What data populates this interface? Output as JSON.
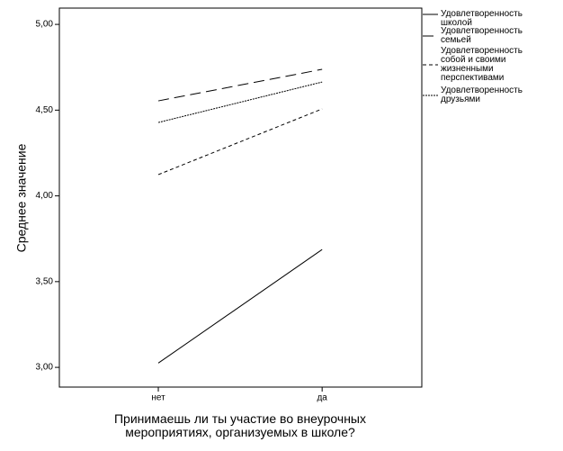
{
  "chart_data": {
    "type": "line",
    "x_label": "Принимаешь ли ты участие во внеурочных мероприятиях, организуемых в школе?",
    "y_label": "Среднее значение",
    "categories": [
      "нет",
      "да"
    ],
    "series": [
      {
        "name": "Удовлетворенность школой",
        "color": "#000000",
        "dash": "none",
        "values": [
          3.025,
          3.687
        ]
      },
      {
        "name": "Удовлетворенность семьей",
        "color": "#000000",
        "dash": "12,6",
        "values": [
          4.554,
          4.738
        ]
      },
      {
        "name": "Удовлетворенность собой и своими жизненными перспективами",
        "color": "#000000",
        "dash": "4,3",
        "values": [
          4.124,
          4.507
        ]
      },
      {
        "name": "Удовлетворенность друзьями",
        "color": "#000000",
        "dash": "2,1",
        "values": [
          4.428,
          4.664
        ]
      }
    ],
    "ylim": [
      2.885,
      5.095
    ],
    "yticks": [
      {
        "value": 3,
        "label": "3,00"
      },
      {
        "value": 3.5,
        "label": "3,50"
      },
      {
        "value": 4,
        "label": "4,00"
      },
      {
        "value": 4.5,
        "label": "4,50"
      },
      {
        "value": 5,
        "label": "5,00"
      }
    ],
    "legend": "right"
  }
}
